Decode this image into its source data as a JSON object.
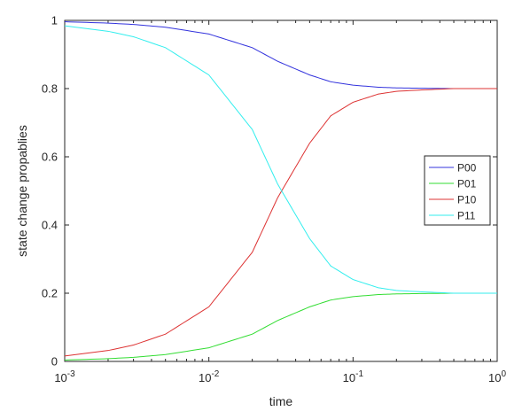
{
  "chart_data": {
    "type": "line",
    "xlabel": "time",
    "ylabel": "state change propablies",
    "xscale": "log",
    "xlim": [
      0.001,
      1
    ],
    "ylim": [
      0,
      1
    ],
    "x_ticks": [
      {
        "value": 0.001,
        "base": "10",
        "exp": "-3"
      },
      {
        "value": 0.01,
        "base": "10",
        "exp": "-2"
      },
      {
        "value": 0.1,
        "base": "10",
        "exp": "-1"
      },
      {
        "value": 1,
        "base": "10",
        "exp": "0"
      }
    ],
    "y_ticks": [
      {
        "value": 0,
        "label": "0"
      },
      {
        "value": 0.2,
        "label": "0.2"
      },
      {
        "value": 0.4,
        "label": "0.4"
      },
      {
        "value": 0.6,
        "label": "0.6"
      },
      {
        "value": 0.8,
        "label": "0.8"
      },
      {
        "value": 1,
        "label": "1"
      }
    ],
    "grid": false,
    "legend_position": "right",
    "x": [
      0.001,
      0.002,
      0.003,
      0.005,
      0.01,
      0.02,
      0.03,
      0.05,
      0.07,
      0.1,
      0.15,
      0.2,
      0.3,
      0.5,
      1
    ],
    "series": [
      {
        "name": "P00",
        "color": "#3333dd",
        "values": [
          0.996,
          0.992,
          0.988,
          0.98,
          0.96,
          0.92,
          0.88,
          0.84,
          0.82,
          0.81,
          0.804,
          0.802,
          0.801,
          0.8,
          0.8
        ]
      },
      {
        "name": "P01",
        "color": "#33dd33",
        "values": [
          0.004,
          0.008,
          0.012,
          0.02,
          0.04,
          0.08,
          0.12,
          0.16,
          0.18,
          0.19,
          0.196,
          0.198,
          0.199,
          0.2,
          0.2
        ]
      },
      {
        "name": "P10",
        "color": "#dd3333",
        "values": [
          0.016,
          0.032,
          0.048,
          0.08,
          0.16,
          0.32,
          0.48,
          0.64,
          0.72,
          0.76,
          0.784,
          0.792,
          0.796,
          0.8,
          0.8
        ]
      },
      {
        "name": "P11",
        "color": "#33eeee",
        "values": [
          0.984,
          0.968,
          0.952,
          0.92,
          0.84,
          0.68,
          0.52,
          0.36,
          0.28,
          0.24,
          0.216,
          0.208,
          0.204,
          0.2,
          0.2
        ]
      }
    ]
  }
}
